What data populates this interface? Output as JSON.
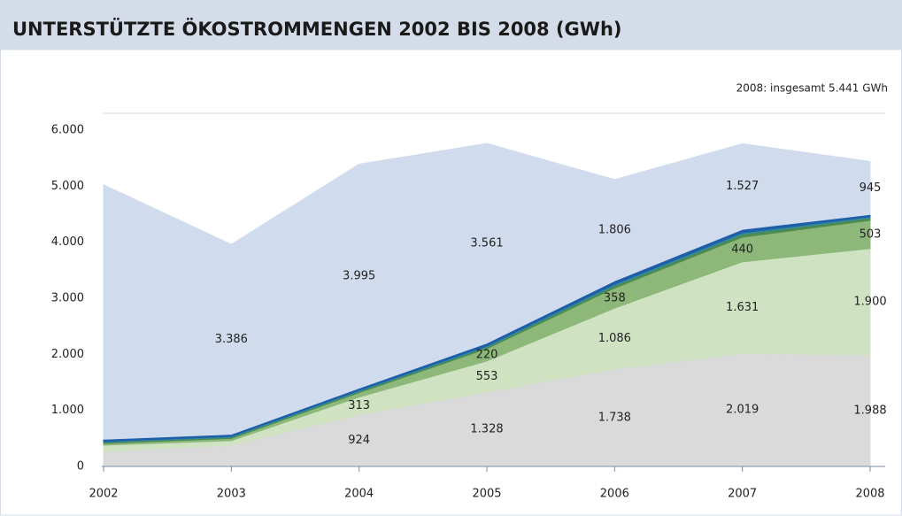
{
  "chart_data": {
    "type": "stacked_area",
    "title": "UNTERSTÜTZTE ÖKOSTROMMENGEN 2002 BIS 2008 (GWh)",
    "annotation": "2008: insgesamt 5.441 GWh",
    "categories": [
      "2002",
      "2003",
      "2004",
      "2005",
      "2006",
      "2007",
      "2008"
    ],
    "series": [
      {
        "color": "#dadada",
        "values": [
          270,
          380,
          924,
          1328,
          1738,
          2019,
          1988
        ],
        "value_labels": [
          null,
          null,
          "924",
          "1.328",
          "1.738",
          "2.019",
          "1.988"
        ]
      },
      {
        "color": "#cfe3c3",
        "values": [
          110,
          80,
          313,
          553,
          1086,
          1631,
          1900
        ],
        "value_labels": [
          null,
          null,
          "313",
          "553",
          "1.086",
          "1.631",
          "1.900"
        ]
      },
      {
        "color": "#8db87a",
        "values": [
          30,
          40,
          80,
          220,
          358,
          440,
          503
        ],
        "value_labels": [
          null,
          null,
          null,
          "220",
          "358",
          "440",
          "503"
        ]
      },
      {
        "color": "#4f8a4f",
        "values": [
          20,
          20,
          20,
          30,
          40,
          50,
          40
        ]
      },
      {
        "color": "#2e8a9e",
        "values": [
          15,
          15,
          20,
          20,
          30,
          30,
          25
        ]
      },
      {
        "color": "#1f5fa8",
        "values": [
          40,
          40,
          40,
          50,
          60,
          60,
          40
        ]
      },
      {
        "color": "#d0dcee",
        "values": [
          4540,
          3386,
          3995,
          3561,
          1806,
          1527,
          945
        ],
        "value_labels": [
          null,
          "3.386",
          "3.995",
          "3.561",
          "1.806",
          "1.527",
          "945"
        ]
      }
    ],
    "ylim": [
      0,
      6300
    ],
    "yticks": [
      0,
      {
        "value": 1000,
        "label": "1.000"
      },
      {
        "value": 2000,
        "label": "2.000"
      },
      {
        "value": 3000,
        "label": "3.000"
      },
      {
        "value": 4000,
        "label": "4.000"
      },
      {
        "value": 5000,
        "label": "5.000"
      },
      {
        "value": 6000,
        "label": "6.000"
      }
    ]
  }
}
